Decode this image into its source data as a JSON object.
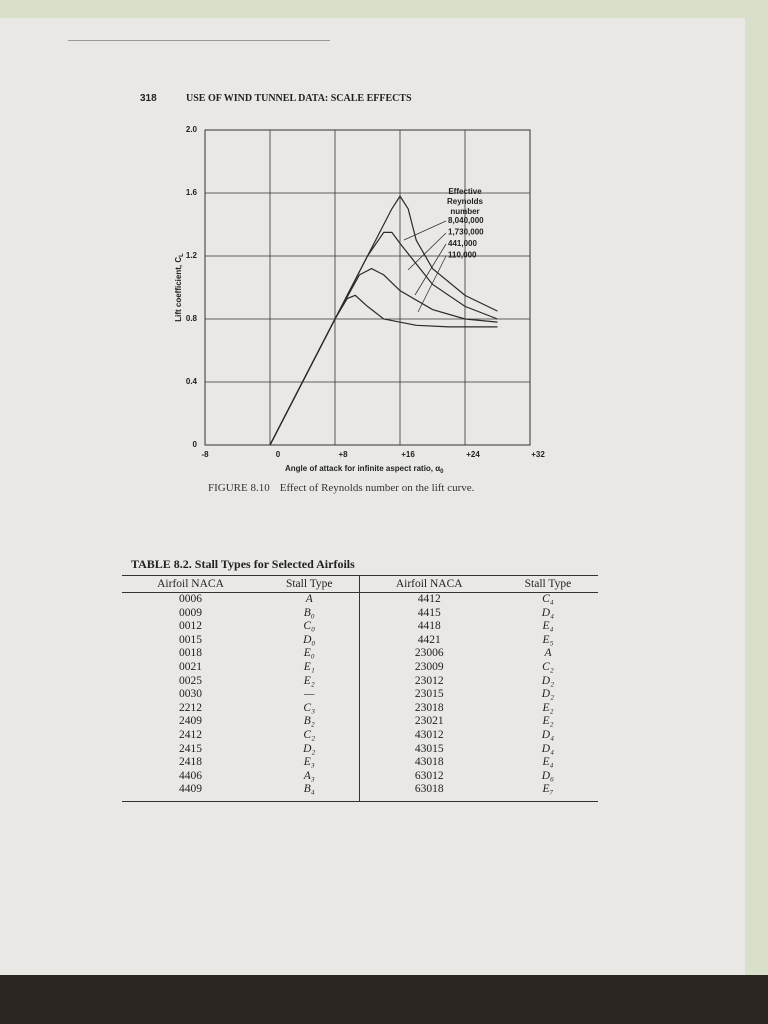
{
  "header": {
    "page_number": "318",
    "running_title": "USE OF WIND TUNNEL DATA: SCALE EFFECTS"
  },
  "figure": {
    "type": "line",
    "y_label": "Lift coefficient, C",
    "y_label_sub": "L",
    "x_label": "Angle of attack for infinite aspect ratio, α",
    "x_label_sub": "0",
    "xlim": [
      -8,
      32
    ],
    "ylim": [
      0,
      2
    ],
    "xticks": [
      -8,
      0,
      {
        "value": 8,
        "label": "+8"
      },
      {
        "value": 16,
        "label": "+16"
      },
      {
        "value": 24,
        "label": "+24"
      },
      {
        "value": 32,
        "label": "+32"
      }
    ],
    "yticks": [
      0,
      0.4,
      0.8,
      1.2,
      1.6,
      {
        "value": 2,
        "label": "2.0"
      }
    ],
    "grid": true,
    "legend_title": [
      "Effective",
      "Reynolds",
      "number"
    ],
    "series": [
      {
        "name": "8,040,000",
        "color": "#2a2a2a",
        "x": [
          0,
          8,
          12,
          15,
          16,
          17,
          18,
          20,
          24,
          28
        ],
        "values": [
          0,
          0.8,
          1.2,
          1.5,
          1.58,
          1.5,
          1.3,
          1.12,
          0.95,
          0.85
        ]
      },
      {
        "name": "1,730,000",
        "color": "#2a2a2a",
        "x": [
          0,
          8,
          12,
          14,
          15,
          16,
          18,
          20,
          24,
          28
        ],
        "values": [
          0,
          0.8,
          1.2,
          1.35,
          1.35,
          1.28,
          1.15,
          1.02,
          0.88,
          0.8
        ]
      },
      {
        "name": "441,000",
        "color": "#2a2a2a",
        "x": [
          0,
          8,
          11,
          12.5,
          14,
          16,
          20,
          24,
          28
        ],
        "values": [
          0,
          0.8,
          1.08,
          1.12,
          1.08,
          0.98,
          0.86,
          0.8,
          0.78
        ]
      },
      {
        "name": "110,000",
        "color": "#2a2a2a",
        "x": [
          0,
          8,
          9.5,
          10.5,
          12,
          14,
          18,
          22,
          28
        ],
        "values": [
          0,
          0.8,
          0.93,
          0.95,
          0.88,
          0.8,
          0.76,
          0.75,
          0.75
        ]
      }
    ]
  },
  "caption": {
    "label": "FIGURE 8.10",
    "text": "Effect of Reynolds number on the lift curve."
  },
  "table": {
    "title": "TABLE 8.2. Stall Types for Selected Airfoils",
    "headers": [
      "Airfoil NACA",
      "Stall Type",
      "Airfoil NACA",
      "Stall Type"
    ],
    "rows": [
      [
        "0006",
        "A",
        "4412",
        "C₄"
      ],
      [
        "0009",
        "B₀",
        "4415",
        "D₄"
      ],
      [
        "0012",
        "C₀",
        "4418",
        "E₄"
      ],
      [
        "0015",
        "D₀",
        "4421",
        "E₅"
      ],
      [
        "0018",
        "E₀",
        "23006",
        "A"
      ],
      [
        "0021",
        "E₁",
        "23009",
        "C₂"
      ],
      [
        "0025",
        "E₂",
        "23012",
        "D₂"
      ],
      [
        "0030",
        "—",
        "23015",
        "D₂"
      ],
      [
        "2212",
        "C₃",
        "23018",
        "E₂"
      ],
      [
        "2409",
        "B₂",
        "23021",
        "E₂"
      ],
      [
        "2412",
        "C₂",
        "43012",
        "D₄"
      ],
      [
        "2415",
        "D₂",
        "43015",
        "D₄"
      ],
      [
        "2418",
        "E₃",
        "43018",
        "E₄"
      ],
      [
        "4406",
        "A₃",
        "63012",
        "D₆"
      ],
      [
        "4409",
        "B₄",
        "63018",
        "E₇"
      ]
    ]
  }
}
